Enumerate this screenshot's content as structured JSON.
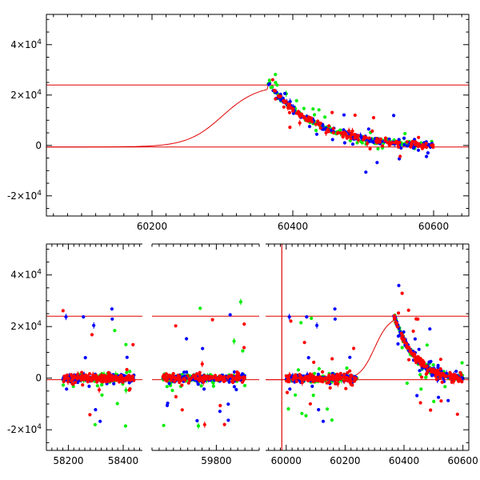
{
  "chart_data": [
    {
      "type": "scatter",
      "panel": "top",
      "xlim": [
        60050,
        60650
      ],
      "ylim": [
        -28000,
        52000
      ],
      "xticks": [
        60200,
        60400,
        60600
      ],
      "yticks": [
        -20000,
        0,
        20000,
        40000
      ],
      "ytick_labels": [
        {
          "mant": "-2×10",
          "exp": "4"
        },
        {
          "mant": "0",
          "exp": ""
        },
        {
          "mant": "2×10",
          "exp": "4"
        },
        {
          "mant": "4×10",
          "exp": "4"
        }
      ],
      "reference_lines_y": [
        24000,
        -600
      ],
      "model_curve": {
        "baseline": -600,
        "peak": 24000,
        "rise_center": 60300,
        "rise_width": 25,
        "peak_time": 60365
      },
      "series": [
        {
          "color": "#00ee00",
          "clusters": [
            [
              60365,
              60600
            ]
          ]
        },
        {
          "color": "#0000ff",
          "clusters": [
            [
              60365,
              60600
            ]
          ]
        },
        {
          "color": "#ff0000",
          "clusters": [
            [
              60365,
              60600
            ]
          ]
        }
      ],
      "grid": false
    },
    {
      "type": "scatter",
      "panel": "bottom",
      "segments": [
        {
          "xlim": [
            58120,
            58470
          ],
          "xticks": [
            58200,
            58400
          ]
        },
        {
          "xlim": [
            59620,
            59920
          ],
          "xticks": [
            59800
          ]
        },
        {
          "xlim": [
            59930,
            60620
          ],
          "xticks": [
            60000,
            60200,
            60400,
            60600
          ]
        }
      ],
      "ylim": [
        -28000,
        52000
      ],
      "yticks": [
        -20000,
        0,
        20000,
        40000
      ],
      "ytick_labels": [
        {
          "mant": "-2×10",
          "exp": "4"
        },
        {
          "mant": "0",
          "exp": ""
        },
        {
          "mant": "2×10",
          "exp": "4"
        },
        {
          "mant": "4×10",
          "exp": "4"
        }
      ],
      "reference_lines_y": [
        24000,
        -600
      ],
      "vertical_line_x": 59985,
      "model_curve": {
        "baseline": -600,
        "peak": 24000,
        "rise_center": 60300,
        "rise_width": 25,
        "peak_time": 60365
      },
      "series": [
        {
          "color": "#00ee00",
          "clusters": [
            [
              58180,
              58440
            ],
            [
              59650,
              59880
            ],
            [
              60000,
              60240
            ],
            [
              60365,
              60600
            ]
          ]
        },
        {
          "color": "#0000ff",
          "clusters": [
            [
              58180,
              58440
            ],
            [
              59650,
              59880
            ],
            [
              60000,
              60240
            ],
            [
              60365,
              60600
            ]
          ]
        },
        {
          "color": "#ff0000",
          "clusters": [
            [
              58180,
              58440
            ],
            [
              59650,
              59880
            ],
            [
              60000,
              60240
            ],
            [
              60365,
              60600
            ]
          ]
        }
      ],
      "grid": false
    }
  ]
}
